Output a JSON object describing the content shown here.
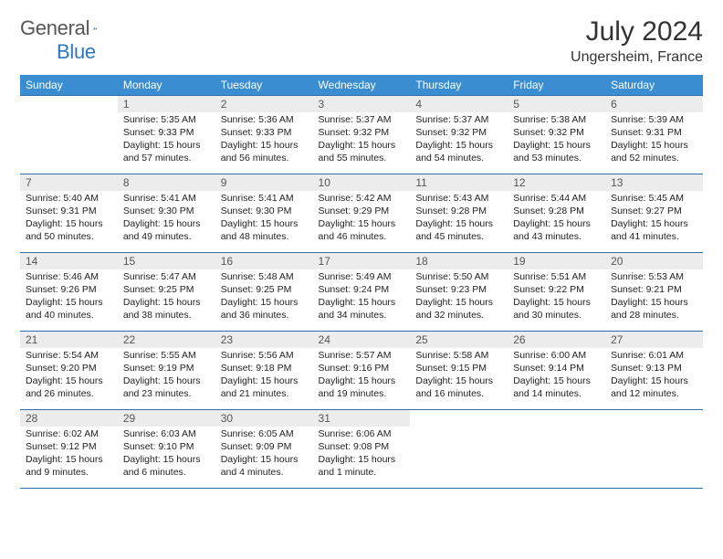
{
  "brand": {
    "name_a": "General",
    "name_b": "Blue"
  },
  "header": {
    "month": "July 2024",
    "location": "Ungersheim, France"
  },
  "colors": {
    "header_bar": "#3a8dd0",
    "row_border": "#2f6fa8",
    "daynum_bg": "#ececec",
    "logo_blue": "#2f78bc"
  },
  "weekday_labels": [
    "Sunday",
    "Monday",
    "Tuesday",
    "Wednesday",
    "Thursday",
    "Friday",
    "Saturday"
  ],
  "weeks": [
    [
      null,
      {
        "n": "1",
        "sr": "Sunrise: 5:35 AM",
        "ss": "Sunset: 9:33 PM",
        "d1": "Daylight: 15 hours",
        "d2": "and 57 minutes."
      },
      {
        "n": "2",
        "sr": "Sunrise: 5:36 AM",
        "ss": "Sunset: 9:33 PM",
        "d1": "Daylight: 15 hours",
        "d2": "and 56 minutes."
      },
      {
        "n": "3",
        "sr": "Sunrise: 5:37 AM",
        "ss": "Sunset: 9:32 PM",
        "d1": "Daylight: 15 hours",
        "d2": "and 55 minutes."
      },
      {
        "n": "4",
        "sr": "Sunrise: 5:37 AM",
        "ss": "Sunset: 9:32 PM",
        "d1": "Daylight: 15 hours",
        "d2": "and 54 minutes."
      },
      {
        "n": "5",
        "sr": "Sunrise: 5:38 AM",
        "ss": "Sunset: 9:32 PM",
        "d1": "Daylight: 15 hours",
        "d2": "and 53 minutes."
      },
      {
        "n": "6",
        "sr": "Sunrise: 5:39 AM",
        "ss": "Sunset: 9:31 PM",
        "d1": "Daylight: 15 hours",
        "d2": "and 52 minutes."
      }
    ],
    [
      {
        "n": "7",
        "sr": "Sunrise: 5:40 AM",
        "ss": "Sunset: 9:31 PM",
        "d1": "Daylight: 15 hours",
        "d2": "and 50 minutes."
      },
      {
        "n": "8",
        "sr": "Sunrise: 5:41 AM",
        "ss": "Sunset: 9:30 PM",
        "d1": "Daylight: 15 hours",
        "d2": "and 49 minutes."
      },
      {
        "n": "9",
        "sr": "Sunrise: 5:41 AM",
        "ss": "Sunset: 9:30 PM",
        "d1": "Daylight: 15 hours",
        "d2": "and 48 minutes."
      },
      {
        "n": "10",
        "sr": "Sunrise: 5:42 AM",
        "ss": "Sunset: 9:29 PM",
        "d1": "Daylight: 15 hours",
        "d2": "and 46 minutes."
      },
      {
        "n": "11",
        "sr": "Sunrise: 5:43 AM",
        "ss": "Sunset: 9:28 PM",
        "d1": "Daylight: 15 hours",
        "d2": "and 45 minutes."
      },
      {
        "n": "12",
        "sr": "Sunrise: 5:44 AM",
        "ss": "Sunset: 9:28 PM",
        "d1": "Daylight: 15 hours",
        "d2": "and 43 minutes."
      },
      {
        "n": "13",
        "sr": "Sunrise: 5:45 AM",
        "ss": "Sunset: 9:27 PM",
        "d1": "Daylight: 15 hours",
        "d2": "and 41 minutes."
      }
    ],
    [
      {
        "n": "14",
        "sr": "Sunrise: 5:46 AM",
        "ss": "Sunset: 9:26 PM",
        "d1": "Daylight: 15 hours",
        "d2": "and 40 minutes."
      },
      {
        "n": "15",
        "sr": "Sunrise: 5:47 AM",
        "ss": "Sunset: 9:25 PM",
        "d1": "Daylight: 15 hours",
        "d2": "and 38 minutes."
      },
      {
        "n": "16",
        "sr": "Sunrise: 5:48 AM",
        "ss": "Sunset: 9:25 PM",
        "d1": "Daylight: 15 hours",
        "d2": "and 36 minutes."
      },
      {
        "n": "17",
        "sr": "Sunrise: 5:49 AM",
        "ss": "Sunset: 9:24 PM",
        "d1": "Daylight: 15 hours",
        "d2": "and 34 minutes."
      },
      {
        "n": "18",
        "sr": "Sunrise: 5:50 AM",
        "ss": "Sunset: 9:23 PM",
        "d1": "Daylight: 15 hours",
        "d2": "and 32 minutes."
      },
      {
        "n": "19",
        "sr": "Sunrise: 5:51 AM",
        "ss": "Sunset: 9:22 PM",
        "d1": "Daylight: 15 hours",
        "d2": "and 30 minutes."
      },
      {
        "n": "20",
        "sr": "Sunrise: 5:53 AM",
        "ss": "Sunset: 9:21 PM",
        "d1": "Daylight: 15 hours",
        "d2": "and 28 minutes."
      }
    ],
    [
      {
        "n": "21",
        "sr": "Sunrise: 5:54 AM",
        "ss": "Sunset: 9:20 PM",
        "d1": "Daylight: 15 hours",
        "d2": "and 26 minutes."
      },
      {
        "n": "22",
        "sr": "Sunrise: 5:55 AM",
        "ss": "Sunset: 9:19 PM",
        "d1": "Daylight: 15 hours",
        "d2": "and 23 minutes."
      },
      {
        "n": "23",
        "sr": "Sunrise: 5:56 AM",
        "ss": "Sunset: 9:18 PM",
        "d1": "Daylight: 15 hours",
        "d2": "and 21 minutes."
      },
      {
        "n": "24",
        "sr": "Sunrise: 5:57 AM",
        "ss": "Sunset: 9:16 PM",
        "d1": "Daylight: 15 hours",
        "d2": "and 19 minutes."
      },
      {
        "n": "25",
        "sr": "Sunrise: 5:58 AM",
        "ss": "Sunset: 9:15 PM",
        "d1": "Daylight: 15 hours",
        "d2": "and 16 minutes."
      },
      {
        "n": "26",
        "sr": "Sunrise: 6:00 AM",
        "ss": "Sunset: 9:14 PM",
        "d1": "Daylight: 15 hours",
        "d2": "and 14 minutes."
      },
      {
        "n": "27",
        "sr": "Sunrise: 6:01 AM",
        "ss": "Sunset: 9:13 PM",
        "d1": "Daylight: 15 hours",
        "d2": "and 12 minutes."
      }
    ],
    [
      {
        "n": "28",
        "sr": "Sunrise: 6:02 AM",
        "ss": "Sunset: 9:12 PM",
        "d1": "Daylight: 15 hours",
        "d2": "and 9 minutes."
      },
      {
        "n": "29",
        "sr": "Sunrise: 6:03 AM",
        "ss": "Sunset: 9:10 PM",
        "d1": "Daylight: 15 hours",
        "d2": "and 6 minutes."
      },
      {
        "n": "30",
        "sr": "Sunrise: 6:05 AM",
        "ss": "Sunset: 9:09 PM",
        "d1": "Daylight: 15 hours",
        "d2": "and 4 minutes."
      },
      {
        "n": "31",
        "sr": "Sunrise: 6:06 AM",
        "ss": "Sunset: 9:08 PM",
        "d1": "Daylight: 15 hours",
        "d2": "and 1 minute."
      },
      null,
      null,
      null
    ]
  ]
}
